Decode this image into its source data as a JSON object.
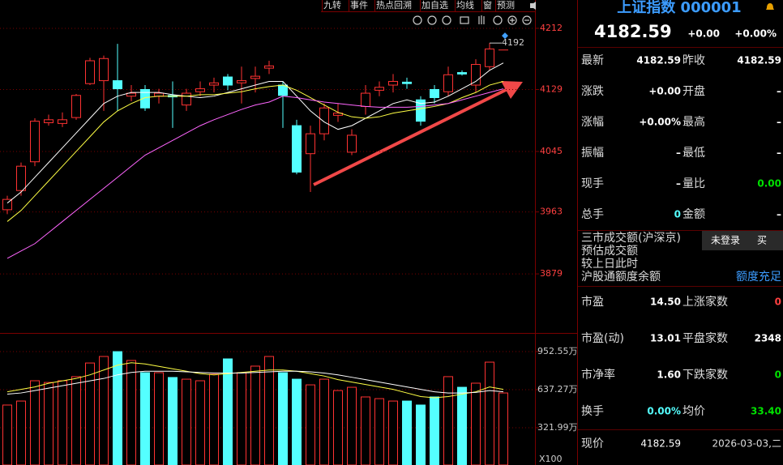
{
  "toolbar": [
    "九转",
    "事件",
    "热点回溯",
    "加自选",
    "均线",
    "窗",
    "预测"
  ],
  "chart_data": {
    "type": "candlestick",
    "candles": [
      {
        "open": 3966,
        "close": 3980,
        "high": 3985,
        "low": 3960
      },
      {
        "open": 3992,
        "close": 4025,
        "high": 4030,
        "low": 3985
      },
      {
        "open": 4031,
        "close": 4086,
        "high": 4090,
        "low": 4025
      },
      {
        "open": 4084,
        "close": 4088,
        "high": 4095,
        "low": 4080
      },
      {
        "open": 4083,
        "close": 4088,
        "high": 4098,
        "low": 4078
      },
      {
        "open": 4091,
        "close": 4121,
        "high": 4123,
        "low": 4088
      },
      {
        "open": 4137,
        "close": 4168,
        "high": 4172,
        "low": 4135
      },
      {
        "open": 4141,
        "close": 4171,
        "high": 4175,
        "low": 4100
      },
      {
        "open": 4141,
        "close": 4130,
        "high": 4190.87,
        "low": 4100
      },
      {
        "open": 4120,
        "close": 4124,
        "high": 4135,
        "low": 4113
      },
      {
        "open": 4129,
        "close": 4104,
        "high": 4135,
        "low": 4100
      },
      {
        "open": 4120,
        "close": 4124,
        "high": 4130,
        "low": 4110
      },
      {
        "open": 4121,
        "close": 4119,
        "high": 4140,
        "low": 4077
      },
      {
        "open": 4108,
        "close": 4124,
        "high": 4130,
        "low": 4100
      },
      {
        "open": 4126,
        "close": 4130,
        "high": 4140,
        "low": 4120
      },
      {
        "open": 4135,
        "close": 4138,
        "high": 4145,
        "low": 4125
      },
      {
        "open": 4146,
        "close": 4135,
        "high": 4150,
        "low": 4128
      },
      {
        "open": 4138,
        "close": 4141,
        "high": 4160,
        "low": 4110
      },
      {
        "open": 4144,
        "close": 4147,
        "high": 4160,
        "low": 4125
      },
      {
        "open": 4158,
        "close": 4161,
        "high": 4168,
        "low": 4150
      },
      {
        "open": 4135,
        "close": 4121,
        "high": 4140,
        "low": 4077
      },
      {
        "open": 4080,
        "close": 4017,
        "high": 4088,
        "low": 4014
      },
      {
        "open": 4042,
        "close": 4069,
        "high": 4080,
        "low": 3990
      },
      {
        "open": 4069,
        "close": 4104,
        "high": 4110,
        "low": 4060
      },
      {
        "open": 4094,
        "close": 4097,
        "high": 4110,
        "low": 4085
      },
      {
        "open": 4044,
        "close": 4067,
        "high": 4075,
        "low": 4040
      },
      {
        "open": 4106,
        "close": 4124,
        "high": 4135,
        "low": 4095
      },
      {
        "open": 4128,
        "close": 4132,
        "high": 4140,
        "low": 4120
      },
      {
        "open": 4135,
        "close": 4140,
        "high": 4150,
        "low": 4125
      },
      {
        "open": 4139,
        "close": 4137,
        "high": 4145,
        "low": 4130
      },
      {
        "open": 4115,
        "close": 4086,
        "high": 4120,
        "low": 4080
      },
      {
        "open": 4129,
        "close": 4118,
        "high": 4135,
        "low": 4110
      },
      {
        "open": 4126,
        "close": 4149,
        "high": 4160,
        "low": 4120
      },
      {
        "open": 4152,
        "close": 4150,
        "high": 4155,
        "low": 4148
      },
      {
        "open": 4135,
        "close": 4163,
        "high": 4170,
        "low": 4125
      },
      {
        "open": 4160,
        "close": 4184,
        "high": 4192,
        "low": 4155
      },
      {
        "open": 4182.59,
        "close": 4182.59,
        "high": 4182.59,
        "low": 4182.59
      }
    ],
    "up_color": "#ff3232",
    "down_color": "#54ffff",
    "ylim": [
      3800,
      4235
    ],
    "yticks": [
      4212,
      4129,
      4045,
      3963,
      3879
    ],
    "ma": [
      {
        "color": "#ffffff",
        "values": [
          3975,
          3990,
          4010,
          4030,
          4050,
          4070,
          4090,
          4110,
          4120,
          4125,
          4125,
          4125,
          4122,
          4120,
          4118,
          4120,
          4125,
          4130,
          4135,
          4140,
          4140,
          4120,
          4100,
          4085,
          4075,
          4080,
          4090,
          4100,
          4110,
          4115,
          4110,
          4112,
          4120,
          4130,
          4140,
          4155,
          4165
        ]
      },
      {
        "color": "#ffff44",
        "values": [
          3950,
          3965,
          3985,
          4005,
          4025,
          4045,
          4065,
          4085,
          4100,
          4110,
          4118,
          4120,
          4120,
          4120,
          4122,
          4122,
          4124,
          4126,
          4130,
          4133,
          4135,
          4128,
          4118,
          4108,
          4098,
          4092,
          4090,
          4092,
          4097,
          4100,
          4103,
          4106,
          4110,
          4118,
          4125,
          4135,
          4140
        ]
      },
      {
        "color": "#ff66ff",
        "values": [
          3900,
          3910,
          3920,
          3935,
          3950,
          3965,
          3980,
          3995,
          4010,
          4025,
          4040,
          4050,
          4060,
          4070,
          4080,
          4088,
          4095,
          4102,
          4108,
          4112,
          4120,
          4118,
          4115,
          4112,
          4110,
          4108,
          4106,
          4105,
          4105,
          4105,
          4106,
          4108,
          4110,
          4115,
          4120,
          4125,
          4130
        ]
      }
    ],
    "volume": {
      "values": [
        510,
        543,
        711,
        697,
        711,
        745,
        858,
        912,
        952,
        879,
        778,
        778,
        738,
        724,
        711,
        765,
        892,
        778,
        832,
        912,
        778,
        724,
        677,
        724,
        630,
        657,
        577,
        563,
        543,
        543,
        510,
        577,
        745,
        657,
        691,
        865,
        610
      ],
      "ylim": [
        27,
        1100
      ],
      "yticks": [
        {
          "value": 952.55,
          "label": "952.55万"
        },
        {
          "value": 637.27,
          "label": "637.27万"
        },
        {
          "value": 321.99,
          "label": "321.99万"
        }
      ],
      "unit_label": "X100",
      "ma": [
        {
          "color": "#ffff44",
          "values": [
            620,
            640,
            660,
            690,
            710,
            730,
            760,
            800,
            840,
            860,
            850,
            830,
            810,
            790,
            770,
            760,
            770,
            780,
            790,
            800,
            800,
            790,
            770,
            750,
            720,
            700,
            680,
            660,
            640,
            610,
            580,
            570,
            580,
            600,
            620,
            660,
            640
          ]
        },
        {
          "color": "#ffffff",
          "values": [
            600,
            610,
            630,
            650,
            670,
            690,
            710,
            730,
            760,
            780,
            790,
            790,
            790,
            785,
            780,
            775,
            775,
            775,
            780,
            785,
            790,
            790,
            785,
            775,
            760,
            740,
            720,
            700,
            680,
            660,
            640,
            620,
            610,
            610,
            615,
            630,
            620
          ]
        }
      ]
    }
  },
  "panel": {
    "title": "上证指数 000001",
    "price": "4182.59",
    "change": "+0.00",
    "change_pct": "+0.00%",
    "quote": [
      [
        "最新",
        "4182.59",
        "昨收",
        "4182.59"
      ],
      [
        "涨跌",
        "+0.00",
        "开盘",
        "–"
      ],
      [
        "涨幅",
        "+0.00%",
        "最高",
        "–"
      ],
      [
        "振幅",
        "–",
        "最低",
        "–"
      ],
      [
        "现手",
        "–",
        "量比",
        "0.00"
      ],
      [
        "总手",
        "0",
        "金额",
        "–"
      ]
    ],
    "turnover": [
      "三市成交额(沪深京)",
      "预估成交额",
      "较上日此时",
      "沪股通额度余额"
    ],
    "quota": "额度充足",
    "buttons": [
      "未登录",
      "买"
    ],
    "stats": [
      [
        "市盈",
        "14.50",
        "上涨家数",
        "0"
      ],
      [
        "市盈(动)",
        "13.01",
        "平盘家数",
        "2348"
      ],
      [
        "市净率",
        "1.60",
        "下跌家数",
        "0"
      ],
      [
        "换手",
        "0.00%",
        "均价",
        "33.40"
      ]
    ],
    "current": [
      "现价",
      "4182.59",
      "2026-03-03,二"
    ]
  }
}
